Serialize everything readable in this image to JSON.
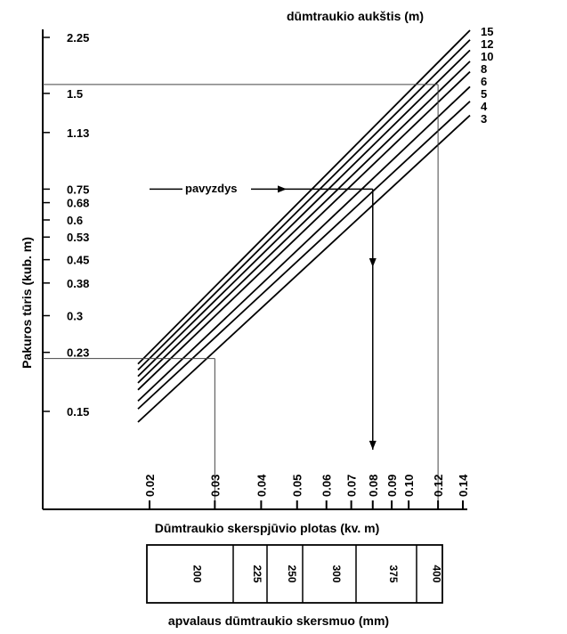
{
  "chart_data": {
    "type": "line",
    "title": "dūmtraukio aukštis (m)",
    "xlabel": "Dūmtraukio skerspjūvio plotas (kv. m)",
    "ylabel": "Pakuros tūris (kub. m)",
    "x_scale": "log",
    "y_scale": "log",
    "xlim": [
      0.02,
      0.14
    ],
    "ylim": [
      0.15,
      2.25
    ],
    "x_ticks": [
      "0.02",
      "0.03",
      "0.04",
      "0.05",
      "0.06",
      "0.07",
      "0.08",
      "0.09",
      "0.10",
      "0.12",
      "0.14"
    ],
    "y_ticks": [
      "2.25",
      "1.5",
      "1.13",
      "0.75",
      "0.68",
      "0.6",
      "0.53",
      "0.45",
      "0.38",
      "0.3",
      "0.23",
      "0.15"
    ],
    "series": [
      {
        "name": "15",
        "x": [
          0.02,
          0.14
        ],
        "y": [
          0.23,
          2.25
        ]
      },
      {
        "name": "12",
        "x": [
          0.02,
          0.14
        ],
        "y": [
          0.22,
          2.1
        ]
      },
      {
        "name": "10",
        "x": [
          0.02,
          0.14
        ],
        "y": [
          0.21,
          1.95
        ]
      },
      {
        "name": "8",
        "x": [
          0.02,
          0.14
        ],
        "y": [
          0.2,
          1.8
        ]
      },
      {
        "name": "6",
        "x": [
          0.02,
          0.14
        ],
        "y": [
          0.19,
          1.67
        ]
      },
      {
        "name": "5",
        "x": [
          0.02,
          0.14
        ],
        "y": [
          0.175,
          1.5
        ]
      },
      {
        "name": "4",
        "x": [
          0.02,
          0.14
        ],
        "y": [
          0.165,
          1.35
        ]
      },
      {
        "name": "3",
        "x": [
          0.02,
          0.14
        ],
        "y": [
          0.15,
          1.22
        ]
      }
    ],
    "annotation": {
      "label": "pavyzdys",
      "y": 0.75,
      "x": 0.08
    },
    "guides": [
      {
        "y": 1.6,
        "x": 0.12
      },
      {
        "y": 0.22,
        "x": 0.03
      }
    ],
    "grid": false
  },
  "diameter_table": {
    "label": "apvalaus dūmtraukio skersmuo (mm)",
    "cells": [
      "200",
      "225",
      "250",
      "300",
      "375",
      "400"
    ]
  }
}
